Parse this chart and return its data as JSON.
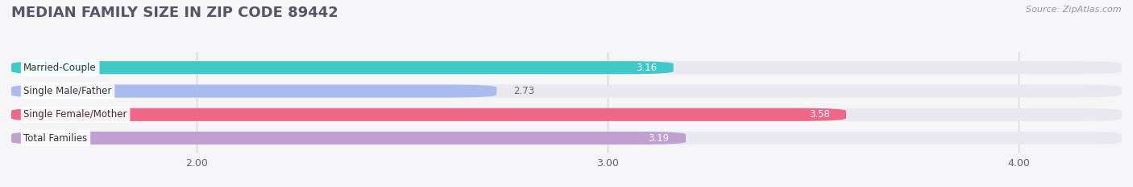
{
  "title": "MEDIAN FAMILY SIZE IN ZIP CODE 89442",
  "source_text": "Source: ZipAtlas.com",
  "categories": [
    "Married-Couple",
    "Single Male/Father",
    "Single Female/Mother",
    "Total Families"
  ],
  "values": [
    3.16,
    2.73,
    3.58,
    3.19
  ],
  "bar_colors": [
    "#3ec8c8",
    "#aabbee",
    "#ee6688",
    "#c0a0d0"
  ],
  "bar_bg_color": "#e8e8f0",
  "xlim_left": 1.55,
  "xlim_right": 4.25,
  "xticks": [
    2.0,
    3.0,
    4.0
  ],
  "xtick_labels": [
    "2.00",
    "3.00",
    "4.00"
  ],
  "value_label_color_inside": "#ffffff",
  "value_label_color_outside": "#666666",
  "bar_height": 0.55,
  "background_color": "#f5f5f8",
  "title_fontsize": 13,
  "label_fontsize": 8.5,
  "value_fontsize": 8.5,
  "tick_fontsize": 9,
  "source_fontsize": 8
}
